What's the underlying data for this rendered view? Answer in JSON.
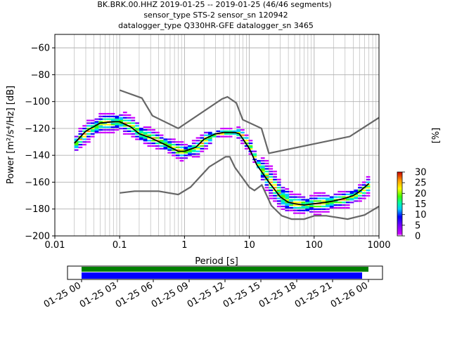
{
  "title": {
    "line1": "BK.BRK.00.HHZ   2019-01-25 -- 2019-01-25  (46/46 segments)",
    "line2": "sensor_type STS-2 sensor_sn 120942",
    "line3": "datalogger_type Q330HR-GFE datalogger_sn 3465"
  },
  "colorbar": {
    "label": "[%]",
    "ticks": [
      "0",
      "5",
      "10",
      "15",
      "20",
      "25",
      "30"
    ],
    "min": 0,
    "max": 30
  },
  "timeline": {
    "ticks": [
      "01-25 00",
      "01-25 03",
      "01-25 06",
      "01-25 09",
      "01-25 12",
      "01-25 15",
      "01-25 18",
      "01-25 21",
      "01-26 00"
    ],
    "colors": {
      "data": "#008000",
      "gaps": "#0000ff"
    }
  },
  "chart_data": {
    "type": "heatmap",
    "title": "BK.BRK.00.HHZ   2019-01-25 -- 2019-01-25  (46/46 segments)",
    "xlabel": "Period [s]",
    "ylabel": "Power [m²/s⁴/Hz] [dB]",
    "xscale": "log",
    "xlim": [
      0.01,
      1000
    ],
    "ylim": [
      -200,
      -50
    ],
    "grid": true,
    "x_ticks": [
      "0.01",
      "0.1",
      "1",
      "10",
      "100",
      "1000"
    ],
    "y_ticks": [
      "−60",
      "−80",
      "−100",
      "−120",
      "−140",
      "−160",
      "−180",
      "−200"
    ],
    "colormap": "pqlx",
    "mean_curve": {
      "period": [
        0.02,
        0.03,
        0.05,
        0.08,
        0.1,
        0.15,
        0.2,
        0.3,
        0.5,
        0.8,
        1,
        1.5,
        2,
        3,
        4,
        5,
        6,
        7,
        8,
        10,
        13,
        17,
        20,
        25,
        30,
        40,
        50,
        70,
        100,
        150,
        200,
        300,
        400,
        500,
        700
      ],
      "power": [
        -131,
        -122,
        -116,
        -115,
        -115,
        -119,
        -124,
        -127,
        -132,
        -137,
        -137,
        -134,
        -128,
        -124,
        -123,
        -123,
        -123,
        -124,
        -128,
        -135,
        -147,
        -155,
        -160,
        -166,
        -171,
        -175,
        -176,
        -177,
        -176,
        -175,
        -174,
        -172,
        -170,
        -167,
        -161
      ]
    },
    "nhnm": {
      "period": [
        0.1,
        0.22,
        0.32,
        0.8,
        3.8,
        4.6,
        6.3,
        7.9,
        15.4,
        20,
        354.8,
        1000
      ],
      "power": [
        -91.5,
        -97.4,
        -110.5,
        -120,
        -98,
        -96.5,
        -101,
        -113.5,
        -120,
        -138.5,
        -126,
        -112
      ]
    },
    "nlnm": {
      "period": [
        0.1,
        0.17,
        0.4,
        0.8,
        1.24,
        2.4,
        4.3,
        5,
        6,
        10,
        12,
        15.6,
        21.9,
        31.6,
        45,
        70,
        101,
        154,
        328,
        600,
        1000
      ],
      "power": [
        -168,
        -166.7,
        -166.7,
        -169.2,
        -163.7,
        -148.6,
        -141.1,
        -141.1,
        -149,
        -163.8,
        -166.2,
        -162.1,
        -177.5,
        -185,
        -187.5,
        -187.5,
        -185,
        -185,
        -187.5,
        -184.4,
        -178
      ]
    }
  }
}
